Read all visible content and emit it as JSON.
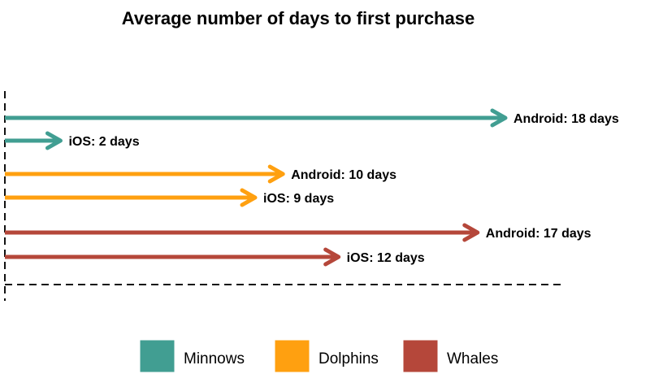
{
  "chart_data": {
    "type": "bar",
    "title": "Average number of days to first purchase",
    "unit": "days",
    "xlim": [
      0,
      18
    ],
    "grid": false,
    "legend_placement": "bottom",
    "series": [
      {
        "name": "Minnows",
        "color": "#419e92",
        "values": [
          {
            "platform": "Android",
            "value": 18,
            "label": "Android: 18 days"
          },
          {
            "platform": "iOS",
            "value": 2,
            "label": "iOS: 2 days"
          }
        ]
      },
      {
        "name": "Dolphins",
        "color": "#ffa010",
        "values": [
          {
            "platform": "Android",
            "value": 10,
            "label": "Android: 10 days"
          },
          {
            "platform": "iOS",
            "value": 9,
            "label": "iOS: 9 days"
          }
        ]
      },
      {
        "name": "Whales",
        "color": "#b5473a",
        "values": [
          {
            "platform": "Android",
            "value": 17,
            "label": "Android: 17 days"
          },
          {
            "platform": "iOS",
            "value": 12,
            "label": "iOS: 12 days"
          }
        ]
      }
    ]
  }
}
